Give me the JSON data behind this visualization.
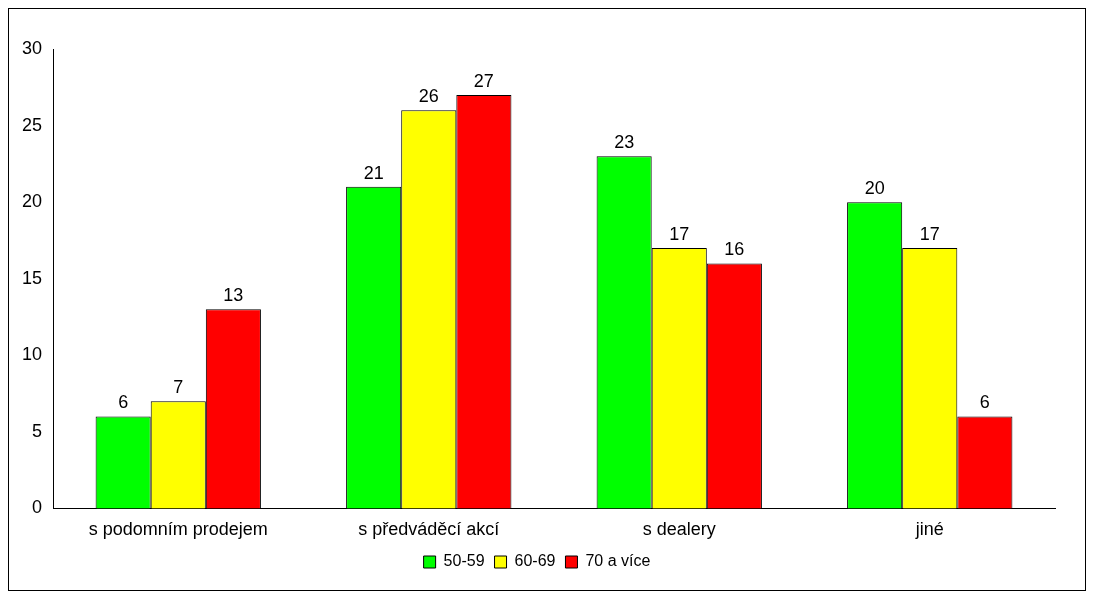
{
  "chart_data": {
    "type": "bar",
    "categories": [
      "s podomním prodejem",
      "s předváděcí akcí",
      "s dealery",
      "jiné"
    ],
    "series": [
      {
        "name": "50-59",
        "color": "#00ff00",
        "values": [
          6,
          21,
          23,
          20
        ]
      },
      {
        "name": "60-69",
        "color": "#ffff00",
        "values": [
          7,
          26,
          17,
          17
        ]
      },
      {
        "name": "70 a více",
        "color": "#ff0000",
        "values": [
          13,
          27,
          16,
          6
        ]
      }
    ],
    "ylim": [
      0,
      30
    ],
    "yticks": [
      0,
      5,
      10,
      15,
      20,
      25,
      30
    ],
    "grid": false,
    "legend": "bottom",
    "data_labels": true
  }
}
